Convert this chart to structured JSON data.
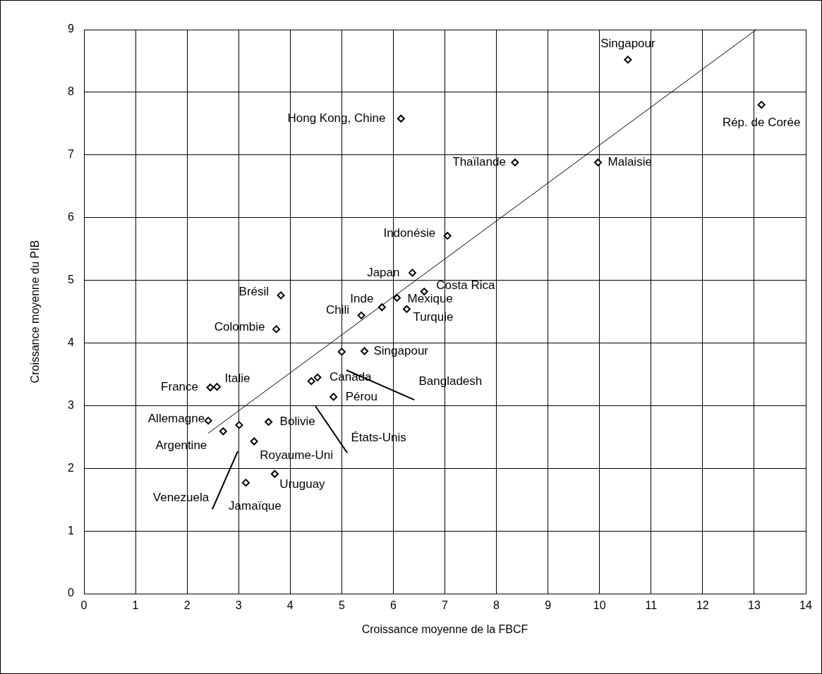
{
  "chart_data": {
    "type": "scatter",
    "xlabel": "Croissance moyenne de la FBCF",
    "ylabel": "Croissance moyenne du PIB",
    "xlim": [
      0,
      14
    ],
    "xticks": [
      0,
      1,
      2,
      3,
      4,
      5,
      6,
      7,
      8,
      9,
      10,
      11,
      12,
      13,
      14
    ],
    "ylim": [
      0,
      9
    ],
    "yticks": [
      0,
      1,
      2,
      3,
      4,
      5,
      6,
      7,
      8,
      9
    ],
    "grid": true,
    "legend": false,
    "marker": "diamond",
    "series": [
      {
        "type": "scatter",
        "color": "#000000",
        "x": [
          10.55,
          13.14,
          6.15,
          8.36,
          9.97,
          7.05,
          6.37,
          6.6,
          3.82,
          6.07,
          5.78,
          6.26,
          5.38,
          3.73,
          5.44,
          5.0,
          4.53,
          4.41,
          4.84,
          2.45,
          2.58,
          2.41,
          2.7,
          3.01,
          3.58,
          3.3,
          3.14,
          3.7
        ],
        "values": [
          8.52,
          7.8,
          7.58,
          6.88,
          6.88,
          5.71,
          5.12,
          4.82,
          4.76,
          4.72,
          4.57,
          4.54,
          4.44,
          4.22,
          3.87,
          3.86,
          3.45,
          3.39,
          3.14,
          3.29,
          3.3,
          2.76,
          2.59,
          2.69,
          2.74,
          2.43,
          1.77,
          1.91
        ]
      },
      {
        "type": "line",
        "color": "#000000",
        "marker": "none",
        "x": [
          2.41,
          13.04
        ],
        "values": [
          2.56,
          9.0
        ]
      }
    ],
    "annotations": [
      {
        "text": "Singapour",
        "x": 10.55,
        "y": 8.52
      },
      {
        "text": "Rép. de Corée",
        "x": 13.14,
        "y": 7.8
      },
      {
        "text": "Hong Kong, Chine",
        "x": 6.15,
        "y": 7.58
      },
      {
        "text": "Thaïlande",
        "x": 8.36,
        "y": 6.88
      },
      {
        "text": "Malaisie",
        "x": 9.97,
        "y": 6.88
      },
      {
        "text": "Indonésie",
        "x": 7.05,
        "y": 5.71
      },
      {
        "text": "Japan",
        "x": 6.37,
        "y": 5.12
      },
      {
        "text": "Costa Rica",
        "x": 6.6,
        "y": 4.82
      },
      {
        "text": "Brésil",
        "x": 3.82,
        "y": 4.76
      },
      {
        "text": "Mexique",
        "x": 6.07,
        "y": 4.72
      },
      {
        "text": "Inde",
        "x": 5.78,
        "y": 4.57
      },
      {
        "text": "Turquie",
        "x": 6.26,
        "y": 4.54
      },
      {
        "text": "Chili",
        "x": 5.38,
        "y": 4.44
      },
      {
        "text": "Colombie",
        "x": 3.73,
        "y": 4.22
      },
      {
        "text": "Singapour",
        "x": 5.44,
        "y": 3.87
      },
      "Bangladesh",
      {
        "text": "Canada",
        "x": 4.53,
        "y": 3.45
      },
      "États-Unis",
      {
        "text": "Pérou",
        "x": 4.84,
        "y": 3.14
      },
      {
        "text": "France",
        "x": 2.45,
        "y": 3.29
      },
      {
        "text": "Italie",
        "x": 2.58,
        "y": 3.3
      },
      {
        "text": "Allemagne",
        "x": 2.41,
        "y": 2.76
      },
      {
        "text": "Argentine",
        "x": 2.7,
        "y": 2.59
      },
      "Venezuela",
      {
        "text": "Bolivie",
        "x": 3.58,
        "y": 2.74
      },
      {
        "text": "Royaume-Uni",
        "x": 3.3,
        "y": 2.43
      },
      {
        "text": "Jamaïque",
        "x": 3.14,
        "y": 1.77
      },
      {
        "text": "Uruguay",
        "x": 3.7,
        "y": 1.91
      }
    ]
  }
}
